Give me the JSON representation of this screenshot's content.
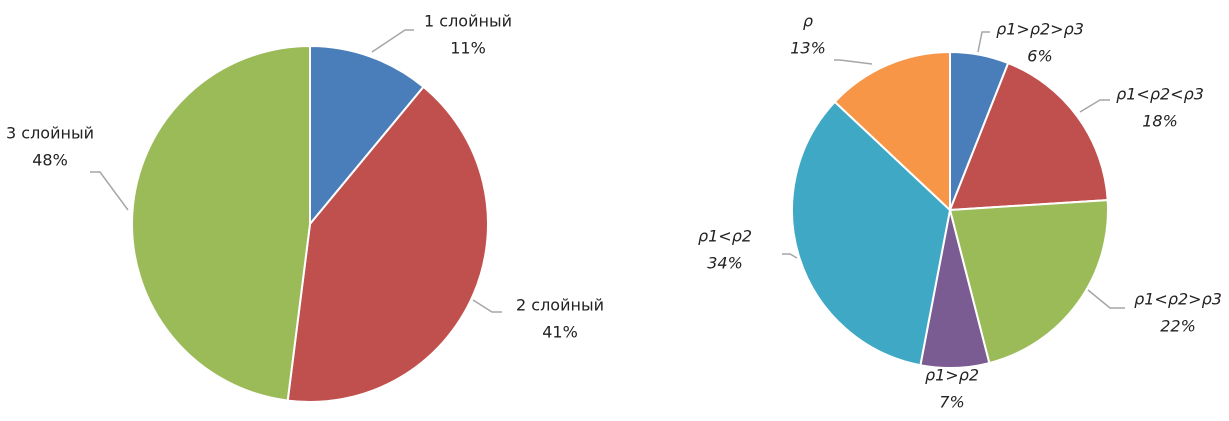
{
  "chart_data": [
    {
      "type": "pie",
      "categories": [
        "1 слойный",
        "2 слойный",
        "3 слойный"
      ],
      "values": [
        11,
        41,
        48
      ],
      "value_labels": [
        "11%",
        "41%",
        "48%"
      ],
      "colors": [
        "#4a7ebb",
        "#c0504d",
        "#9bbb59"
      ]
    },
    {
      "type": "pie",
      "categories": [
        "ρ1>ρ2>ρ3",
        "ρ1<ρ2<ρ3",
        "ρ1<ρ2>ρ3",
        "ρ1>ρ2",
        "ρ1<ρ2",
        "ρ"
      ],
      "values": [
        6,
        18,
        22,
        7,
        34,
        13
      ],
      "value_labels": [
        "6%",
        "18%",
        "22%",
        "7%",
        "34%",
        "13%"
      ],
      "colors": [
        "#4a7ebb",
        "#c0504d",
        "#9bbb59",
        "#7a5c93",
        "#3fa8c4",
        "#f79646"
      ]
    }
  ]
}
